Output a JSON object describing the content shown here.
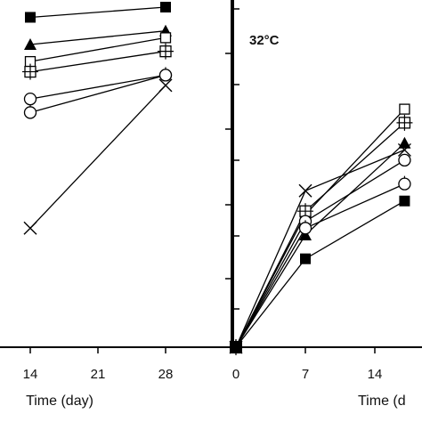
{
  "chart_data": [
    {
      "type": "line",
      "panel": "left",
      "title": "",
      "xlabel": "Time (day)",
      "ylabel": "",
      "x_ticks": [
        14,
        21,
        28
      ],
      "x_tick_labels": [
        "14",
        "21",
        "28"
      ],
      "xlim": [
        14,
        28
      ],
      "ylim": [
        0,
        100
      ],
      "grid": false,
      "legend": "none",
      "series": [
        {
          "marker": "filled-square",
          "x": [
            14,
            28
          ],
          "y": [
            97,
            100
          ]
        },
        {
          "marker": "filled-triangle",
          "x": [
            14,
            28
          ],
          "y": [
            89,
            93
          ]
        },
        {
          "marker": "open-square",
          "x": [
            14,
            28
          ],
          "y": [
            84,
            91
          ]
        },
        {
          "marker": "crossed-square",
          "x": [
            14,
            28
          ],
          "y": [
            81,
            87
          ]
        },
        {
          "marker": "open-circle",
          "x": [
            14,
            28
          ],
          "y": [
            73,
            80
          ]
        },
        {
          "marker": "open-circle-2",
          "x": [
            14,
            28
          ],
          "y": [
            69,
            80
          ]
        },
        {
          "marker": "x-mark",
          "x": [
            14,
            28
          ],
          "y": [
            35,
            77
          ]
        }
      ]
    },
    {
      "type": "line",
      "panel": "right",
      "title": "",
      "annotation": "32°C",
      "xlabel": "Time (d",
      "ylabel": "",
      "x_ticks": [
        0,
        7,
        14
      ],
      "x_tick_labels": [
        "0",
        "7",
        "14"
      ],
      "xlim": [
        0,
        16.5
      ],
      "ylim": [
        0,
        100
      ],
      "grid": false,
      "legend": "none",
      "series": [
        {
          "marker": "filled-square",
          "x": [
            0,
            7,
            17
          ],
          "y": [
            0,
            26,
            43
          ]
        },
        {
          "marker": "filled-triangle",
          "x": [
            0,
            7,
            17
          ],
          "y": [
            0,
            33,
            60
          ]
        },
        {
          "marker": "open-square",
          "x": [
            0,
            7,
            17
          ],
          "y": [
            0,
            39,
            70
          ]
        },
        {
          "marker": "crossed-square",
          "x": [
            0,
            7,
            17
          ],
          "y": [
            0,
            40,
            66
          ]
        },
        {
          "marker": "open-circle",
          "x": [
            0,
            7,
            17
          ],
          "y": [
            0,
            37,
            55
          ]
        },
        {
          "marker": "open-circle-2",
          "x": [
            0,
            7,
            17
          ],
          "y": [
            0,
            35,
            48
          ]
        },
        {
          "marker": "x-mark",
          "x": [
            0,
            7,
            17
          ],
          "y": [
            0,
            46,
            58
          ]
        }
      ]
    }
  ]
}
